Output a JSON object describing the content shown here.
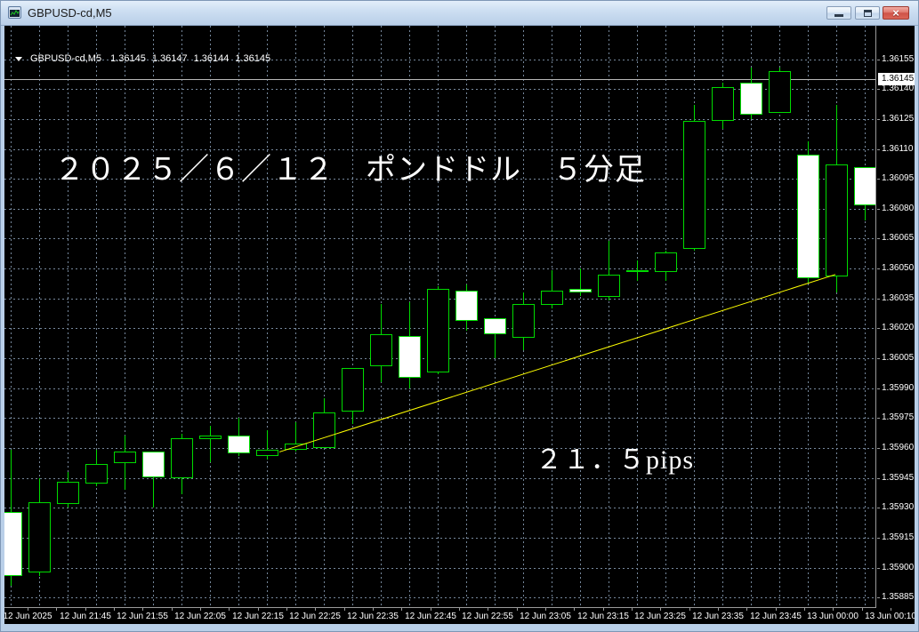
{
  "window": {
    "title": "GBPUSD-cd,M5",
    "controls": [
      "minimize",
      "restore",
      "close"
    ],
    "icons": {
      "app": "candlestick-chart-window-icon",
      "minimize": "minimize-bar-icon",
      "restore": "restore-window-icon",
      "close": "close-x-icon"
    },
    "close_glyph": "×"
  },
  "header": {
    "dropdown_icon": "triangle-down-icon",
    "symbol": "GBPUSD-cd,M5",
    "open": "1.36145",
    "high": "1.36147",
    "low": "1.36144",
    "close": "1.36145"
  },
  "annotations": {
    "date_note": "２０２５／６／１２　ポンドドル　５分足",
    "pips_note": "２１．５pips"
  },
  "price_axis": {
    "current_price_label": "1.36145",
    "labels": [
      "1.36155",
      "1.36140",
      "1.36125",
      "1.36110",
      "1.36095",
      "1.36080",
      "1.36065",
      "1.36050",
      "1.36035",
      "1.36020",
      "1.36005",
      "1.35990",
      "1.35975",
      "1.35960",
      "1.35945",
      "1.35930",
      "1.35915",
      "1.35900",
      "1.35885"
    ]
  },
  "time_axis": {
    "labels": [
      "12 Jun 2025",
      "12 Jun 21:45",
      "12 Jun 21:55",
      "12 Jun 22:05",
      "12 Jun 22:15",
      "12 Jun 22:25",
      "12 Jun 22:35",
      "12 Jun 22:45",
      "12 Jun 22:55",
      "12 Jun 23:05",
      "12 Jun 23:15",
      "12 Jun 23:25",
      "12 Jun 23:35",
      "12 Jun 23:45",
      "13 Jun 00:00",
      "13 Jun 00:10"
    ]
  },
  "chart_data": {
    "type": "candlestick",
    "symbol": "GBPUSD-cd",
    "timeframe": "M5",
    "title": "２０２５／６／１２　ポンドドル　５分足",
    "ylim": [
      1.3588,
      1.3616
    ],
    "grid_step": 0.00015,
    "current_price": 1.36145,
    "legend_position": "none",
    "grid": true,
    "candles": [
      {
        "o": 1.35928,
        "h": 1.35959,
        "l": 1.35891,
        "c": 1.35896
      },
      {
        "o": 1.35898,
        "h": 1.35945,
        "l": 1.35896,
        "c": 1.35933
      },
      {
        "o": 1.35932,
        "h": 1.35948,
        "l": 1.3593,
        "c": 1.35943
      },
      {
        "o": 1.35942,
        "h": 1.35959,
        "l": 1.35941,
        "c": 1.35952
      },
      {
        "o": 1.35952,
        "h": 1.35966,
        "l": 1.35939,
        "c": 1.35958
      },
      {
        "o": 1.35958,
        "h": 1.35958,
        "l": 1.3593,
        "c": 1.35945
      },
      {
        "o": 1.35945,
        "h": 1.35967,
        "l": 1.35937,
        "c": 1.35965
      },
      {
        "o": 1.35964,
        "h": 1.35971,
        "l": 1.35953,
        "c": 1.35966
      },
      {
        "o": 1.35966,
        "h": 1.35975,
        "l": 1.35956,
        "c": 1.35957
      },
      {
        "o": 1.35956,
        "h": 1.35969,
        "l": 1.35954,
        "c": 1.35959
      },
      {
        "o": 1.35959,
        "h": 1.35973,
        "l": 1.35958,
        "c": 1.35962
      },
      {
        "o": 1.3596,
        "h": 1.35985,
        "l": 1.3596,
        "c": 1.35978
      },
      {
        "o": 1.35978,
        "h": 1.36,
        "l": 1.35972,
        "c": 1.36
      },
      {
        "o": 1.36001,
        "h": 1.36032,
        "l": 1.35993,
        "c": 1.36017
      },
      {
        "o": 1.36016,
        "h": 1.36033,
        "l": 1.3599,
        "c": 1.35995
      },
      {
        "o": 1.35998,
        "h": 1.36041,
        "l": 1.35997,
        "c": 1.3604
      },
      {
        "o": 1.36039,
        "h": 1.36042,
        "l": 1.36019,
        "c": 1.36024
      },
      {
        "o": 1.36025,
        "h": 1.36025,
        "l": 1.36005,
        "c": 1.36017
      },
      {
        "o": 1.36015,
        "h": 1.36038,
        "l": 1.36009,
        "c": 1.36032
      },
      {
        "o": 1.36032,
        "h": 1.36049,
        "l": 1.3603,
        "c": 1.36039
      },
      {
        "o": 1.3604,
        "h": 1.3605,
        "l": 1.36036,
        "c": 1.36038
      },
      {
        "o": 1.36036,
        "h": 1.36064,
        "l": 1.36034,
        "c": 1.36047
      },
      {
        "o": 1.36048,
        "h": 1.36054,
        "l": 1.36044,
        "c": 1.36049
      },
      {
        "o": 1.36048,
        "h": 1.36059,
        "l": 1.36044,
        "c": 1.36058
      },
      {
        "o": 1.3606,
        "h": 1.36132,
        "l": 1.36059,
        "c": 1.36124
      },
      {
        "o": 1.36124,
        "h": 1.36143,
        "l": 1.3612,
        "c": 1.36141
      },
      {
        "o": 1.36143,
        "h": 1.36151,
        "l": 1.36125,
        "c": 1.36127
      },
      {
        "o": 1.36128,
        "h": 1.36151,
        "l": 1.36128,
        "c": 1.36149
      },
      {
        "o": 1.36107,
        "h": 1.36114,
        "l": 1.36043,
        "c": 1.36045
      },
      {
        "o": 1.36046,
        "h": 1.36132,
        "l": 1.36038,
        "c": 1.36102
      },
      {
        "o": 1.36101,
        "h": 1.36101,
        "l": 1.36074,
        "c": 1.36082
      }
    ],
    "trendline": {
      "start_bar": 9.44,
      "start_price": 1.35958,
      "end_bar": 28.97,
      "end_price": 1.36047,
      "pips": 21.5,
      "label": "２１．５pips"
    }
  },
  "colors": {
    "background": "#000000",
    "frame": "#B9CFE8",
    "candle_outline": "#00DB00",
    "bull_fill": "#000000",
    "bear_fill": "#FFFFFF",
    "grid": "#75879B",
    "trendline": "#FFFF00",
    "current_price_line": "#B8B8B8",
    "axis_text": "#FFFFFF"
  }
}
